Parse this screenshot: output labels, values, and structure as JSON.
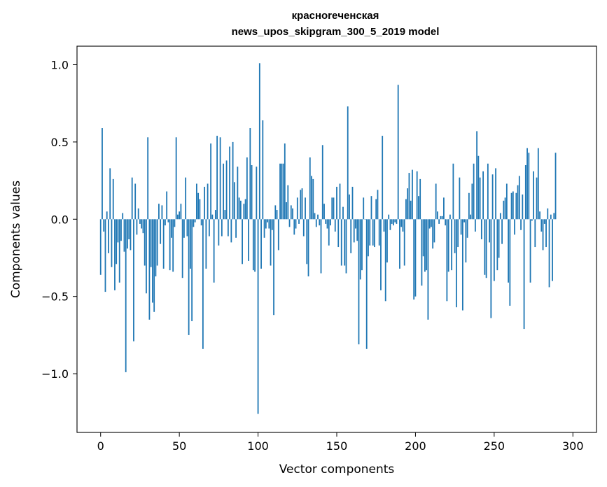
{
  "chart_data": {
    "type": "bar",
    "title": "красноreченская\nnews_upos_skipgram_300_5_2019 model",
    "title_lines": [
      "красноreченская",
      "news_upos_skipgram_300_5_2019 model"
    ],
    "xlabel": "Vector components",
    "ylabel": "Components values",
    "xlim": [
      -15,
      315
    ],
    "ylim": [
      -1.38,
      1.12
    ],
    "xticks": [
      0,
      50,
      100,
      150,
      200,
      250,
      300
    ],
    "xtick_labels": [
      "0",
      "50",
      "100",
      "150",
      "200",
      "250",
      "300"
    ],
    "yticks": [
      -1.0,
      -0.5,
      0.0,
      0.5,
      1.0
    ],
    "ytick_labels": [
      "−1.0",
      "−0.5",
      "0.0",
      "0.5",
      "1.0"
    ],
    "grid": false,
    "bar_color": "#1f77b4",
    "x_start": 0,
    "values": [
      -0.36,
      0.59,
      -0.08,
      -0.47,
      0.05,
      -0.22,
      0.33,
      -0.31,
      0.26,
      -0.46,
      -0.29,
      -0.15,
      -0.41,
      -0.14,
      0.04,
      -0.21,
      -0.99,
      -0.19,
      -0.13,
      -0.2,
      0.27,
      -0.79,
      0.23,
      -0.1,
      0.07,
      -0.03,
      -0.06,
      -0.09,
      -0.3,
      -0.48,
      0.53,
      -0.65,
      -0.31,
      -0.54,
      -0.6,
      -0.37,
      -0.3,
      0.1,
      -0.16,
      0.09,
      -0.32,
      -0.04,
      0.18,
      -0.02,
      -0.33,
      -0.12,
      -0.34,
      -0.05,
      0.53,
      0.03,
      0.05,
      0.1,
      -0.38,
      -0.12,
      0.27,
      -0.11,
      -0.75,
      -0.32,
      -0.66,
      -0.05,
      -0.02,
      0.23,
      0.17,
      0.13,
      -0.04,
      -0.84,
      0.21,
      -0.32,
      0.23,
      -0.11,
      0.49,
      0.03,
      -0.41,
      0.06,
      0.54,
      -0.17,
      0.53,
      -0.11,
      0.36,
      0.06,
      0.38,
      -0.11,
      0.47,
      -0.15,
      0.5,
      0.24,
      -0.12,
      0.34,
      0.14,
      0.12,
      -0.29,
      0.1,
      0.13,
      0.4,
      -0.27,
      0.59,
      0.35,
      -0.33,
      -0.34,
      0.34,
      -1.26,
      1.01,
      -0.32,
      0.64,
      -0.12,
      -0.06,
      -0.02,
      -0.06,
      -0.3,
      -0.07,
      -0.62,
      0.09,
      0.06,
      -0.2,
      0.36,
      0.36,
      0.36,
      0.49,
      0.11,
      0.22,
      -0.05,
      0.09,
      0.07,
      -0.1,
      -0.06,
      0.14,
      -0.03,
      0.19,
      0.2,
      -0.11,
      0.14,
      -0.29,
      -0.37,
      0.4,
      0.28,
      0.26,
      0.04,
      -0.05,
      0.03,
      -0.04,
      -0.35,
      0.48,
      0.1,
      -0.03,
      -0.06,
      -0.17,
      -0.04,
      0.14,
      0.14,
      -0.08,
      0.21,
      -0.18,
      0.23,
      -0.3,
      0.08,
      -0.3,
      -0.35,
      0.73,
      0.16,
      -0.22,
      0.21,
      -0.15,
      -0.06,
      -0.14,
      -0.81,
      -0.39,
      -0.33,
      0.14,
      0.0,
      -0.84,
      -0.24,
      -0.17,
      0.15,
      -0.17,
      -0.18,
      0.13,
      0.19,
      -0.17,
      -0.46,
      0.54,
      -0.08,
      -0.53,
      -0.28,
      0.03,
      -0.07,
      -0.03,
      -0.04,
      -0.02,
      -0.03,
      0.87,
      -0.32,
      -0.05,
      -0.08,
      -0.3,
      0.13,
      0.2,
      0.3,
      0.12,
      0.32,
      -0.52,
      -0.5,
      0.31,
      0.15,
      0.26,
      -0.43,
      -0.24,
      -0.34,
      -0.33,
      -0.65,
      -0.06,
      -0.05,
      -0.19,
      -0.15,
      0.23,
      0.05,
      -0.03,
      0.02,
      0.02,
      0.14,
      -0.04,
      -0.53,
      -0.34,
      0.03,
      -0.33,
      0.36,
      -0.22,
      -0.57,
      -0.18,
      0.27,
      -0.1,
      -0.59,
      -0.02,
      -0.28,
      -0.12,
      0.17,
      0.03,
      0.23,
      0.36,
      -0.08,
      0.57,
      0.41,
      0.27,
      -0.13,
      0.31,
      -0.36,
      -0.38,
      0.36,
      -0.15,
      -0.64,
      0.29,
      -0.4,
      0.33,
      -0.33,
      -0.25,
      0.04,
      -0.16,
      0.12,
      0.14,
      0.23,
      -0.41,
      -0.56,
      0.17,
      0.18,
      -0.1,
      0.17,
      0.22,
      0.28,
      -0.07,
      0.16,
      -0.71,
      0.35,
      0.46,
      0.43,
      -0.41,
      -0.01,
      0.31,
      -0.18,
      0.27,
      0.46,
      0.05,
      -0.08,
      -0.2,
      -0.03,
      -0.18,
      0.07,
      -0.44,
      0.03,
      -0.4,
      0.04,
      0.43
    ]
  }
}
